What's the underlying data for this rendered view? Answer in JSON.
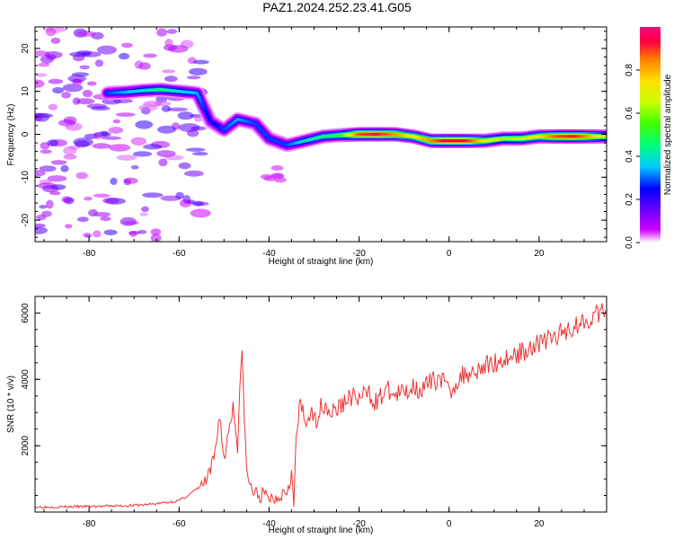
{
  "figure_title": "PAZ1.2024.252.23.41.G05",
  "chart_data": [
    {
      "type": "heatmap",
      "title": "PAZ1.2024.252.23.41.G05",
      "xlabel": "Height of straight line (km)",
      "ylabel": "Frequency (Hz)",
      "xlim": [
        -92,
        35
      ],
      "ylim": [
        -25,
        25
      ],
      "x_ticks": [
        -80,
        -60,
        -40,
        -20,
        0,
        20
      ],
      "y_ticks": [
        -20,
        -10,
        0,
        10,
        20
      ],
      "colorbar": {
        "label": "Normalized spectral amplitude",
        "range": [
          0,
          1
        ],
        "ticks": [
          "0.0",
          "0.2",
          "0.4",
          "0.6",
          "0.8"
        ],
        "colormap": [
          "#ffffff",
          "#cc00ff",
          "#6a00ff",
          "#0000ff",
          "#00c8ff",
          "#00ff80",
          "#40ff00",
          "#c8ff00",
          "#ffe000",
          "#ff8000",
          "#ff0040",
          "#ff0080"
        ]
      },
      "ridge": [
        {
          "x": -76,
          "y": 9.6,
          "amp": 0.3
        },
        {
          "x": -72,
          "y": 9.8,
          "amp": 0.35
        },
        {
          "x": -68,
          "y": 10.2,
          "amp": 0.4
        },
        {
          "x": -64,
          "y": 10.4,
          "amp": 0.45
        },
        {
          "x": -60,
          "y": 10.0,
          "amp": 0.4
        },
        {
          "x": -56,
          "y": 9.6,
          "amp": 0.35
        },
        {
          "x": -53,
          "y": 3.0,
          "amp": 0.25
        },
        {
          "x": -50,
          "y": 1.0,
          "amp": 0.3
        },
        {
          "x": -47,
          "y": 3.5,
          "amp": 0.35
        },
        {
          "x": -43,
          "y": 2.5,
          "amp": 0.3
        },
        {
          "x": -40,
          "y": -1.0,
          "amp": 0.3
        },
        {
          "x": -36,
          "y": -2.5,
          "amp": 0.3
        },
        {
          "x": -32,
          "y": -1.5,
          "amp": 0.4
        },
        {
          "x": -28,
          "y": -0.5,
          "amp": 0.45
        },
        {
          "x": -24,
          "y": -0.2,
          "amp": 0.5
        },
        {
          "x": -20,
          "y": 0.0,
          "amp": 0.85
        },
        {
          "x": -16,
          "y": 0.0,
          "amp": 0.9
        },
        {
          "x": -12,
          "y": 0.0,
          "amp": 0.8
        },
        {
          "x": -8,
          "y": -0.5,
          "amp": 0.7
        },
        {
          "x": -4,
          "y": -1.5,
          "amp": 0.8
        },
        {
          "x": 0,
          "y": -1.5,
          "amp": 0.95
        },
        {
          "x": 4,
          "y": -1.5,
          "amp": 0.9
        },
        {
          "x": 8,
          "y": -1.5,
          "amp": 0.7
        },
        {
          "x": 12,
          "y": -1.0,
          "amp": 0.6
        },
        {
          "x": 16,
          "y": -1.0,
          "amp": 0.65
        },
        {
          "x": 20,
          "y": -0.5,
          "amp": 0.7
        },
        {
          "x": 24,
          "y": -0.5,
          "amp": 0.85
        },
        {
          "x": 28,
          "y": -0.5,
          "amp": 0.9
        },
        {
          "x": 32,
          "y": -0.5,
          "amp": 0.75
        },
        {
          "x": 35,
          "y": -0.5,
          "amp": 0.6
        }
      ],
      "noise_region": {
        "x_range": [
          -92,
          -54
        ],
        "y_range": [
          -25,
          25
        ],
        "amp": 0.2
      }
    },
    {
      "type": "line",
      "xlabel": "Height of straight line (km)",
      "ylabel": "SNR (10 * v/v)",
      "xlim": [
        -92,
        35
      ],
      "ylim": [
        0,
        6500
      ],
      "x_ticks": [
        -80,
        -60,
        -40,
        -20,
        0,
        20
      ],
      "y_ticks": [
        2000,
        4000,
        6000
      ],
      "color": "#ee3333",
      "series": [
        {
          "x": [
            -92,
            -85,
            -78,
            -70,
            -65,
            -62,
            -60,
            -58,
            -56,
            -54,
            -53,
            -52,
            -51,
            -50,
            -49,
            -48,
            -47,
            -46.5,
            -46,
            -45.5,
            -45,
            -44,
            -43,
            -42,
            -41,
            -40,
            -39,
            -38,
            -37,
            -36,
            -35,
            -34.5,
            -34,
            -33.5,
            -33,
            -32,
            -31,
            -30,
            -28,
            -26,
            -24,
            -22,
            -20,
            -18,
            -16,
            -14,
            -12,
            -10,
            -8,
            -6,
            -4,
            -2,
            0,
            2,
            4,
            6,
            8,
            10,
            12,
            14,
            16,
            18,
            20,
            22,
            24,
            26,
            28,
            30,
            32,
            34,
            35
          ],
          "y": [
            150,
            160,
            170,
            200,
            250,
            300,
            350,
            500,
            700,
            900,
            1200,
            1800,
            3000,
            1500,
            2500,
            3200,
            2000,
            3800,
            4650,
            3000,
            1200,
            700,
            550,
            500,
            500,
            450,
            400,
            500,
            600,
            700,
            1200,
            100,
            2200,
            2800,
            3300,
            2600,
            3000,
            2700,
            3300,
            3000,
            3200,
            3500,
            3400,
            3600,
            3300,
            3700,
            3500,
            3600,
            3800,
            3700,
            3900,
            4100,
            3600,
            4000,
            4200,
            4300,
            4400,
            4500,
            4600,
            4700,
            4800,
            5000,
            5100,
            5200,
            5300,
            5500,
            5600,
            5800,
            5900,
            6000,
            6100
          ]
        }
      ]
    }
  ]
}
